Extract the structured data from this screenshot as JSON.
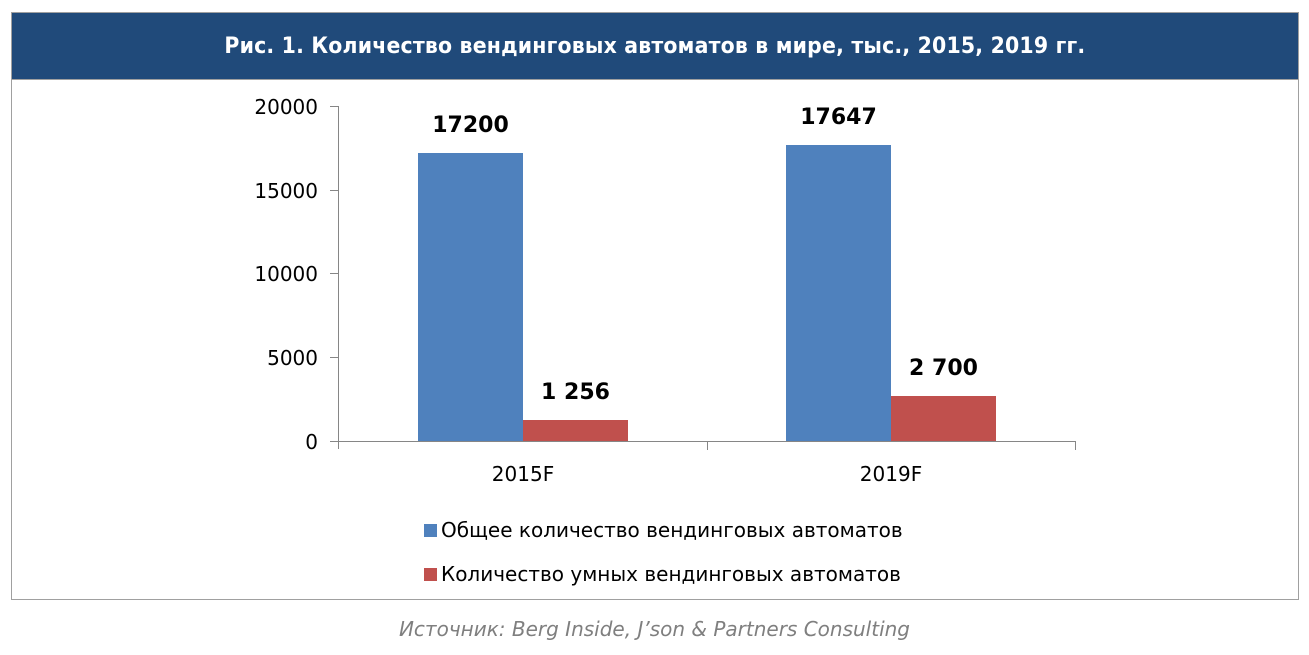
{
  "header": {
    "title": "Рис. 1. Количество вендинговых автоматов в мире, тыс., 2015, 2019 гг."
  },
  "colors": {
    "header_bg": "#204a7a",
    "series1": "#4f81bd",
    "series2": "#c0504d",
    "axis": "#868686",
    "source_text": "#7f7f7f"
  },
  "chart_data": {
    "type": "bar",
    "title": "Рис. 1. Количество вендинговых автоматов в мире, тыс., 2015, 2019 гг.",
    "xlabel": "",
    "ylabel": "",
    "ylim": [
      0,
      20000
    ],
    "yticks": [
      "0",
      "5000",
      "10000",
      "15000",
      "20000"
    ],
    "categories": [
      "2015F",
      "2019F"
    ],
    "series": [
      {
        "name": "Общее количество вендинговых автоматов",
        "values": [
          17200,
          17647
        ],
        "labels": [
          "17200",
          "17647"
        ],
        "color": "#4f81bd"
      },
      {
        "name": "Количество умных вендинговых автоматов",
        "values": [
          1256,
          2700
        ],
        "labels": [
          "1 256",
          "2 700"
        ],
        "color": "#c0504d"
      }
    ],
    "grid": false,
    "legend_position": "bottom"
  },
  "source": "Источник: Berg Inside, J’son & Partners Consulting"
}
